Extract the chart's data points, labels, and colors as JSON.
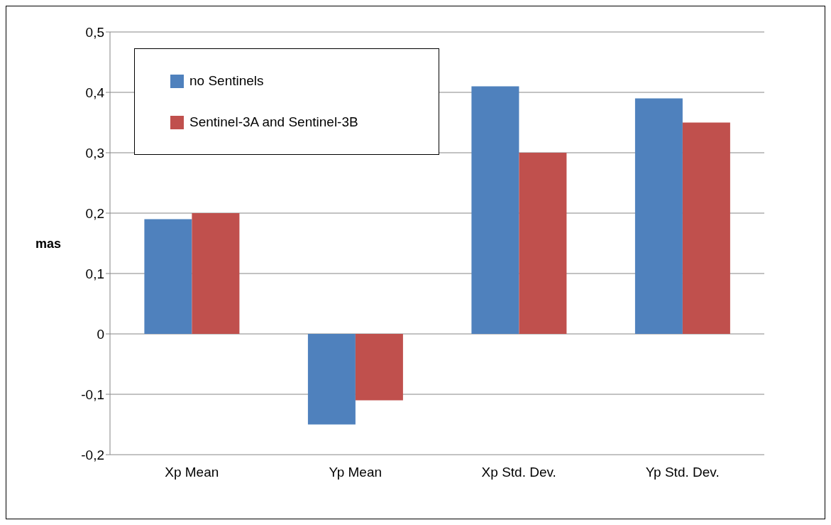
{
  "chart_data": {
    "type": "bar",
    "ylabel": "mas",
    "categories": [
      "Xp Mean",
      "Yp Mean",
      "Xp Std. Dev.",
      "Yp Std. Dev."
    ],
    "series": [
      {
        "name": "no Sentinels",
        "color": "#4f81bd",
        "values": [
          0.19,
          -0.15,
          0.41,
          0.39
        ]
      },
      {
        "name": "Sentinel-3A and Sentinel-3B",
        "color": "#c0504d",
        "values": [
          0.2,
          -0.11,
          0.3,
          0.35
        ]
      }
    ],
    "ylim": [
      -0.2,
      0.5
    ],
    "yticks": [
      {
        "value": -0.2,
        "label": "-0,2"
      },
      {
        "value": -0.1,
        "label": "-0,1"
      },
      {
        "value": 0,
        "label": "0"
      },
      {
        "value": 0.1,
        "label": "0,1"
      },
      {
        "value": 0.2,
        "label": "0,2"
      },
      {
        "value": 0.3,
        "label": "0,3"
      },
      {
        "value": 0.4,
        "label": "0,4"
      },
      {
        "value": 0.5,
        "label": "0,5"
      }
    ],
    "grid": "y",
    "legend": "top left"
  }
}
